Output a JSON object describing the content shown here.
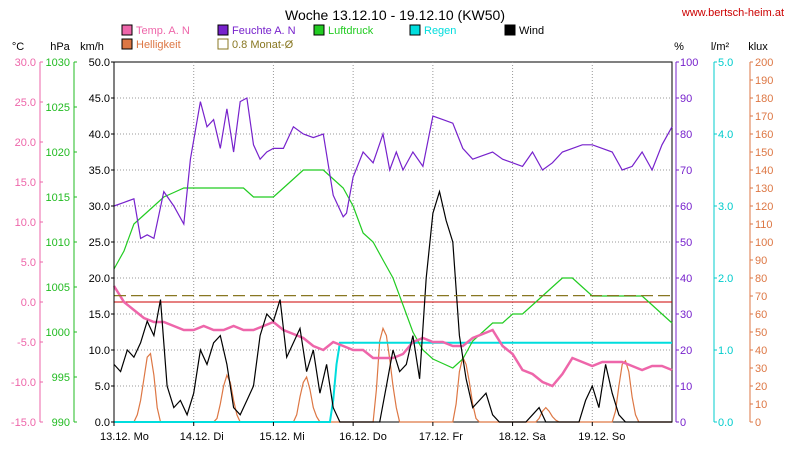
{
  "header": {
    "title": "Woche 13.12.10 - 19.12.10 (KW50)",
    "website": "www.bertsch-heim.at"
  },
  "legend": [
    {
      "label": "Temp. A. N",
      "color": "#ee66aa"
    },
    {
      "label": "Feuchte A. N",
      "color": "#7722cc"
    },
    {
      "label": "Luftdruck",
      "color": "#22cc22"
    },
    {
      "label": "Regen",
      "color": "#00dddd"
    },
    {
      "label": "Wind",
      "color": "#000000"
    },
    {
      "label": "Helligkeit",
      "color": "#dd7744"
    },
    {
      "label": "0.8 Monat-Ø",
      "color": "#887722"
    }
  ],
  "axes": {
    "temp": {
      "unit": "°C",
      "color": "#ee66aa",
      "ticks": [
        "30.0",
        "25.0",
        "20.0",
        "15.0",
        "10.0",
        "5.0",
        "0.0",
        "-5.0",
        "-10.0",
        "-15.0"
      ]
    },
    "pressure": {
      "unit": "hPa",
      "color": "#22bb22",
      "ticks": [
        "1030",
        "1025",
        "1020",
        "1015",
        "1010",
        "1005",
        "1000",
        "995",
        "990"
      ]
    },
    "wind": {
      "unit": "km/h",
      "color": "#000000",
      "ticks": [
        "50.0",
        "45.0",
        "40.0",
        "35.0",
        "30.0",
        "25.0",
        "20.0",
        "15.0",
        "10.0",
        "5.0",
        "0.0"
      ]
    },
    "humidity": {
      "unit": "%",
      "color": "#7722cc",
      "ticks": [
        "100",
        "90",
        "80",
        "70",
        "60",
        "50",
        "40",
        "30",
        "20",
        "10",
        "0"
      ]
    },
    "rain": {
      "unit": "l/m²",
      "color": "#00cccc",
      "ticks": [
        "5.0",
        "4.0",
        "3.0",
        "2.0",
        "1.0",
        "0.0"
      ]
    },
    "light": {
      "unit": "klux",
      "color": "#dd7744",
      "ticks": [
        "200",
        "190",
        "180",
        "170",
        "160",
        "150",
        "140",
        "130",
        "120",
        "110",
        "100",
        "90",
        "80",
        "70",
        "60",
        "50",
        "40",
        "30",
        "20",
        "10",
        "0"
      ]
    }
  },
  "chart_data": {
    "type": "line",
    "title": "Woche 13.12.10 - 19.12.10 (KW50)",
    "x_labels": [
      "13.12. Mo",
      "14.12. Di",
      "15.12. Mi",
      "16.12. Do",
      "17.12. Fr",
      "18.12. Sa",
      "19.12. So"
    ],
    "x_range_hours": [
      0,
      168
    ],
    "grid": true,
    "series": [
      {
        "name": "Temp. A. N",
        "axis": "temp",
        "unit": "°C",
        "color": "#ee66aa",
        "x": [
          0,
          3,
          6,
          9,
          12,
          15,
          18,
          21,
          24,
          27,
          30,
          33,
          36,
          39,
          42,
          45,
          48,
          51,
          54,
          57,
          60,
          63,
          66,
          69,
          72,
          75,
          78,
          81,
          84,
          87,
          90,
          93,
          96,
          99,
          102,
          105,
          108,
          111,
          114,
          117,
          120,
          123,
          126,
          129,
          132,
          135,
          138,
          141,
          144,
          147,
          150,
          153,
          156,
          159,
          162,
          165,
          168
        ],
        "y": [
          2,
          0,
          -1,
          -2,
          -2.5,
          -2.5,
          -3,
          -3.5,
          -3.5,
          -3,
          -3.5,
          -3.5,
          -3,
          -3.5,
          -3.5,
          -3,
          -2.5,
          -3.5,
          -4,
          -4.5,
          -5.5,
          -6,
          -5,
          -5.5,
          -6,
          -6,
          -7,
          -7,
          -7,
          -6.5,
          -5,
          -4.5,
          -5,
          -5,
          -5.5,
          -5.5,
          -4.5,
          -4,
          -3.5,
          -5.5,
          -6.5,
          -8.5,
          -9,
          -10,
          -10.5,
          -9,
          -7,
          -7.5,
          -8,
          -7.5,
          -7.5,
          -7.5,
          -8,
          -8.5,
          -8,
          -8,
          -8.5
        ]
      },
      {
        "name": "Feuchte A. N",
        "axis": "humidity",
        "unit": "%",
        "color": "#7722cc",
        "x": [
          0,
          3,
          6,
          8,
          10,
          12,
          15,
          18,
          21,
          23,
          26,
          28,
          30,
          32,
          34,
          36,
          38,
          40,
          42,
          44,
          46,
          48,
          51,
          54,
          57,
          60,
          63,
          66,
          69,
          70,
          72,
          75,
          78,
          81,
          83,
          85,
          87,
          90,
          93,
          96,
          99,
          102,
          105,
          108,
          111,
          114,
          117,
          120,
          123,
          126,
          129,
          132,
          135,
          138,
          141,
          144,
          147,
          150,
          153,
          156,
          159,
          162,
          165,
          168
        ],
        "y": [
          60,
          61,
          62,
          51,
          52,
          51,
          64,
          60,
          55,
          73,
          89,
          82,
          84,
          76,
          87,
          75,
          89,
          90,
          77,
          73,
          75,
          76,
          76,
          82,
          80,
          79,
          80,
          63,
          57,
          58,
          68,
          75,
          72,
          80,
          70,
          75,
          70,
          75,
          71,
          85,
          84,
          83,
          76,
          73,
          74,
          75,
          73,
          72,
          71,
          75,
          70,
          72,
          75,
          76,
          77,
          77,
          76,
          75,
          70,
          71,
          75,
          70,
          77,
          82
        ]
      },
      {
        "name": "Luftdruck",
        "axis": "pressure",
        "unit": "hPa",
        "color": "#22cc22",
        "x": [
          0,
          3,
          6,
          9,
          12,
          15,
          18,
          21,
          24,
          27,
          30,
          33,
          36,
          39,
          42,
          45,
          48,
          51,
          54,
          57,
          60,
          63,
          66,
          69,
          72,
          75,
          78,
          81,
          84,
          87,
          90,
          93,
          96,
          99,
          102,
          105,
          108,
          111,
          114,
          117,
          120,
          123,
          126,
          129,
          132,
          135,
          138,
          141,
          144,
          147,
          150,
          153,
          156,
          159,
          162,
          165,
          168
        ],
        "y": [
          1007,
          1009,
          1012,
          1013,
          1014,
          1015,
          1015.5,
          1016,
          1016,
          1016,
          1016,
          1016,
          1016,
          1016,
          1015,
          1015,
          1015,
          1016,
          1017,
          1018,
          1018,
          1018,
          1017,
          1016,
          1014,
          1011,
          1010,
          1008,
          1006,
          1003,
          1000,
          998,
          997,
          996.5,
          996,
          997,
          999,
          1000,
          1001,
          1001,
          1002,
          1002,
          1003,
          1004,
          1005,
          1006,
          1006,
          1005,
          1004,
          1004,
          1004,
          1004,
          1004,
          1004,
          1003,
          1002,
          1001
        ]
      },
      {
        "name": "Regen",
        "axis": "rain",
        "unit": "l/m²",
        "color": "#00dddd",
        "x": [
          0,
          65,
          66,
          67,
          68,
          69,
          70,
          72,
          80,
          90,
          100,
          110,
          120,
          130,
          140,
          150,
          160,
          168
        ],
        "y": [
          0,
          0,
          0.3,
          0.8,
          1.1,
          1.1,
          1.1,
          1.1,
          1.1,
          1.1,
          1.1,
          1.1,
          1.1,
          1.1,
          1.1,
          1.1,
          1.1,
          1.1
        ]
      },
      {
        "name": "Wind",
        "axis": "wind",
        "unit": "km/h",
        "color": "#000000",
        "x": [
          0,
          2,
          4,
          6,
          8,
          10,
          12,
          14,
          16,
          18,
          20,
          22,
          24,
          26,
          28,
          30,
          32,
          34,
          36,
          38,
          40,
          42,
          44,
          46,
          48,
          50,
          52,
          54,
          56,
          58,
          60,
          62,
          64,
          66,
          68,
          70,
          72,
          74,
          76,
          78,
          80,
          82,
          84,
          86,
          88,
          90,
          92,
          94,
          96,
          98,
          100,
          102,
          104,
          106,
          108,
          110,
          112,
          114,
          116,
          118,
          120,
          122,
          124,
          126,
          128,
          130,
          132,
          134,
          136,
          138,
          140,
          142,
          144,
          146,
          148,
          150,
          152,
          154,
          156,
          158,
          160,
          162,
          164,
          166,
          168
        ],
        "y": [
          8,
          7,
          10,
          9,
          11,
          14,
          12,
          17,
          5,
          2,
          3,
          1,
          4,
          10,
          8,
          11,
          12,
          8,
          2,
          1,
          3,
          5,
          12,
          15,
          14,
          17,
          9,
          11,
          13,
          7,
          10,
          4,
          8,
          2,
          0,
          0,
          0,
          0,
          0,
          0,
          0,
          5,
          10,
          7,
          8,
          12,
          6,
          20,
          29,
          32,
          28,
          25,
          12,
          6,
          2,
          3,
          4,
          1,
          0,
          0,
          0,
          0,
          0,
          1,
          2,
          0,
          0,
          0,
          0,
          0,
          0,
          3,
          5,
          2,
          8,
          4,
          1,
          0,
          0,
          0,
          0,
          0,
          0,
          0,
          0
        ]
      },
      {
        "name": "Helligkeit",
        "axis": "light",
        "unit": "klux",
        "color": "#dd7744",
        "x": [
          0,
          6,
          7,
          8,
          9,
          10,
          11,
          12,
          13,
          14,
          30,
          31,
          32,
          33,
          34,
          35,
          36,
          37,
          38,
          54,
          55,
          56,
          57,
          58,
          59,
          60,
          61,
          62,
          78,
          79,
          80,
          81,
          82,
          83,
          84,
          85,
          86,
          102,
          103,
          104,
          105,
          106,
          107,
          108,
          109,
          110,
          126,
          127,
          128,
          129,
          130,
          131,
          132,
          133,
          134,
          150,
          151,
          152,
          153,
          154,
          155,
          156,
          157,
          158,
          168
        ],
        "y": [
          0,
          0,
          4,
          12,
          24,
          36,
          38,
          26,
          8,
          0,
          0,
          2,
          10,
          20,
          26,
          22,
          12,
          4,
          0,
          0,
          4,
          14,
          22,
          25,
          18,
          8,
          3,
          0,
          0,
          18,
          45,
          52,
          48,
          35,
          20,
          8,
          0,
          0,
          10,
          28,
          36,
          32,
          22,
          10,
          2,
          0,
          0,
          0,
          2,
          6,
          8,
          6,
          3,
          1,
          0,
          0,
          6,
          20,
          32,
          34,
          28,
          14,
          4,
          0,
          0
        ]
      },
      {
        "name": "0.8 Monat-Ø",
        "axis": "temp",
        "unit": "°C",
        "color": "#887722",
        "x": [
          0,
          168
        ],
        "y": [
          0.8,
          0.8
        ]
      }
    ],
    "reference_line": {
      "axis": "temp",
      "y": 0,
      "color": "#cc0000"
    }
  }
}
